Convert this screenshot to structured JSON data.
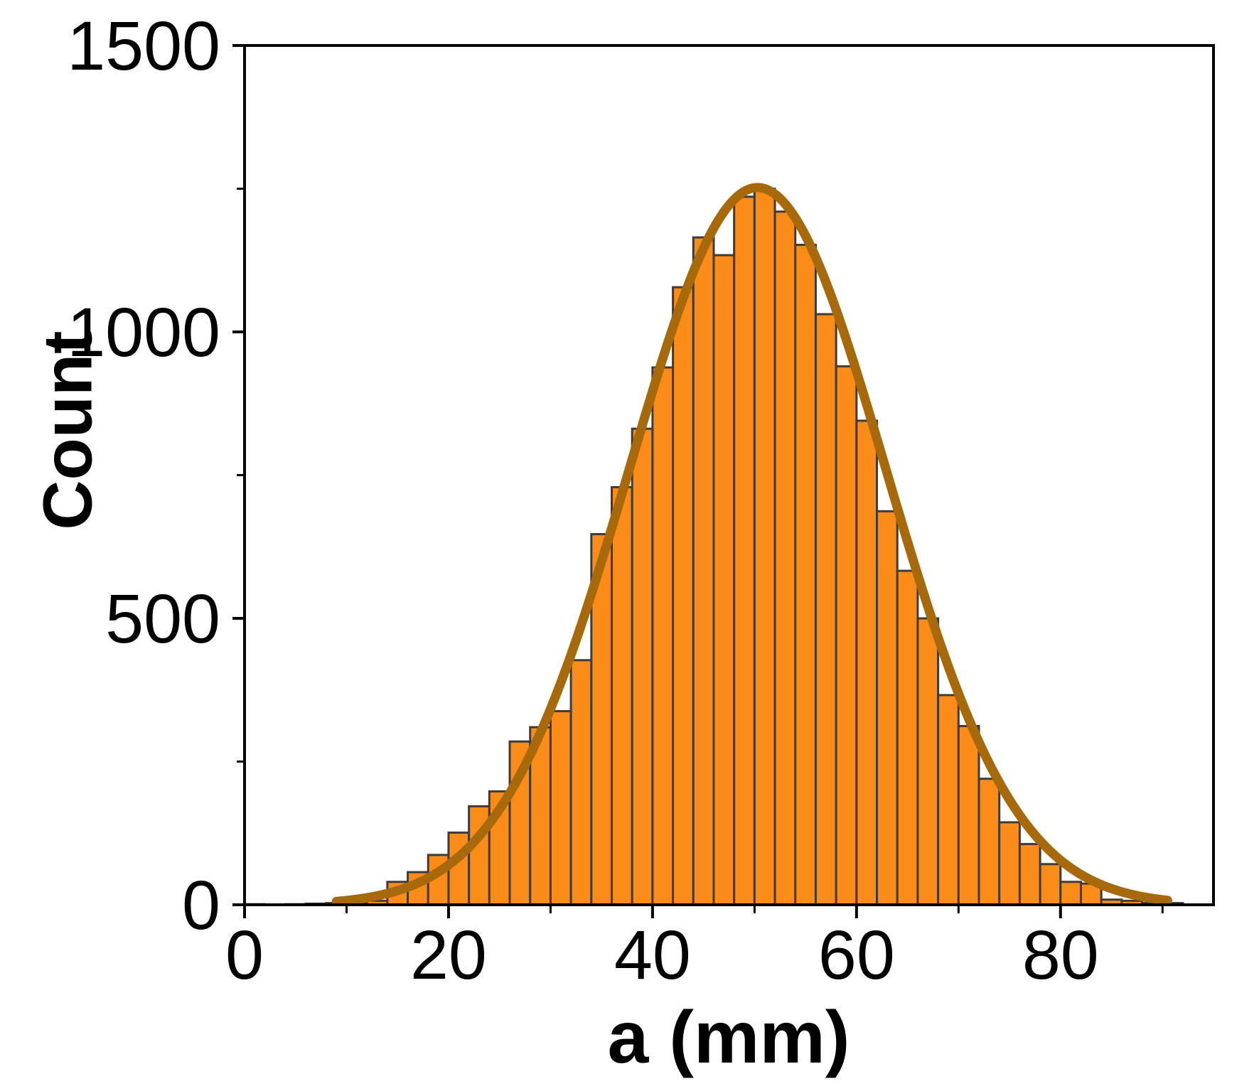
{
  "chart_data": {
    "type": "bar",
    "subtype": "histogram-with-gaussian-fit",
    "title": "",
    "xlabel": "a (mm)",
    "ylabel": "Count",
    "xlim": [
      0,
      95
    ],
    "ylim": [
      0,
      1500
    ],
    "grid": false,
    "legend": "none",
    "bin_width": 2,
    "bin_start": 0,
    "categories_note": "bins of width 2 mm from 0 to 92 mm",
    "bin_left_edges": [
      0,
      2,
      4,
      6,
      8,
      10,
      12,
      14,
      16,
      18,
      20,
      22,
      24,
      26,
      28,
      30,
      32,
      34,
      36,
      38,
      40,
      42,
      44,
      46,
      48,
      50,
      52,
      54,
      56,
      58,
      60,
      62,
      64,
      66,
      68,
      70,
      72,
      74,
      76,
      78,
      80,
      82,
      84,
      86,
      88,
      90
    ],
    "counts": [
      1,
      0,
      1,
      2,
      3,
      4,
      7,
      40,
      57,
      87,
      126,
      172,
      198,
      285,
      310,
      338,
      427,
      647,
      729,
      831,
      938,
      1078,
      1165,
      1134,
      1236,
      1250,
      1210,
      1152,
      1031,
      940,
      845,
      687,
      583,
      500,
      366,
      312,
      220,
      144,
      106,
      71,
      40,
      37,
      9,
      7,
      3,
      3
    ],
    "x_major_ticks": [
      0,
      20,
      40,
      60,
      80
    ],
    "x_minor_ticks": [
      10,
      30,
      50,
      70,
      90
    ],
    "y_major_ticks": [
      0,
      500,
      1000,
      1500
    ],
    "y_minor_ticks": [
      250,
      750,
      1250
    ],
    "fit_curve": {
      "type": "gaussian",
      "amplitude": 1252,
      "mean": 50.3,
      "sigma": 12.6,
      "x_range": [
        9,
        90.5
      ]
    },
    "colors": {
      "bar_fill": "#FB8C17",
      "bar_edge": "#3C3C3C",
      "curve": "#A8690A",
      "axis": "#000000",
      "background": "#FFFFFF"
    }
  }
}
